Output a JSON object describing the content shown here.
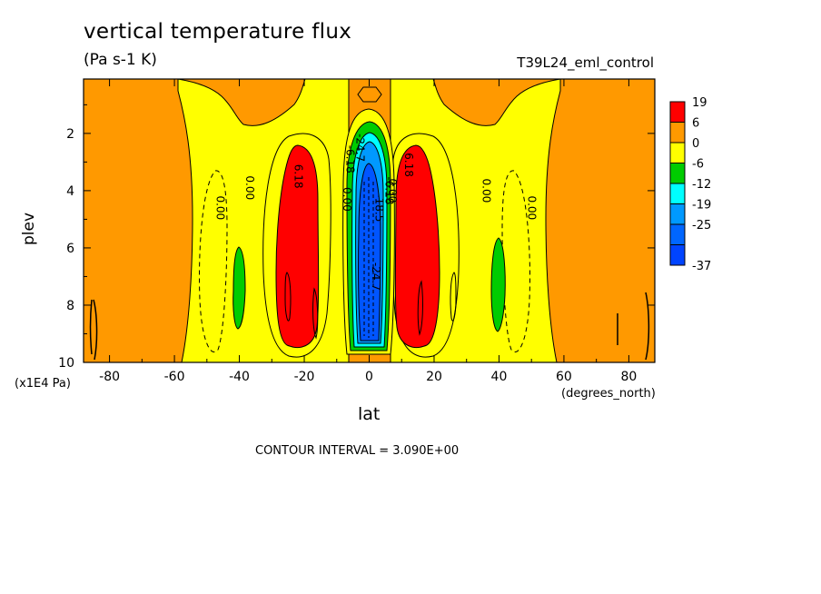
{
  "chart_data": {
    "type": "contour",
    "title": "vertical temperature flux",
    "units": "(Pa s-1 K)",
    "dataset": "T39L24_eml_control",
    "xlabel": "lat",
    "ylabel": "plev",
    "xunits": "(degrees_north)",
    "yunits": "(x1E4 Pa)",
    "xlim": [
      -88,
      88
    ],
    "ylim": [
      10,
      0.1
    ],
    "x_ticks": [
      -80,
      -60,
      -40,
      -20,
      0,
      20,
      40,
      60,
      80
    ],
    "y_ticks": [
      2,
      4,
      6,
      8,
      10
    ],
    "contour_interval_text": "CONTOUR INTERVAL = 3.090E+00",
    "colorbar": {
      "labels": [
        "19",
        "6",
        "0",
        "-6",
        "-12",
        "-19",
        "-25",
        "-37"
      ],
      "colors": [
        "#ff0000",
        "#ff9900",
        "#ffff00",
        "#00cc00",
        "#00ffff",
        "#0099ff",
        "#0066ff",
        "#0044ff"
      ]
    },
    "contour_labels": [
      {
        "text": "0.00",
        "lat": -46,
        "plev": 4.6
      },
      {
        "text": "0.00",
        "lat": -37,
        "plev": 3.9
      },
      {
        "text": "6.18",
        "lat": -22,
        "plev": 3.5
      },
      {
        "text": "0.00",
        "lat": -7,
        "plev": 4.3
      },
      {
        "text": "-6.18",
        "lat": -6,
        "plev": 2.9
      },
      {
        "text": "-24.7",
        "lat": -3,
        "plev": 2.5
      },
      {
        "text": "-18.5",
        "lat": 3,
        "plev": 4.6
      },
      {
        "text": "-24.7",
        "lat": 2,
        "plev": 7.0
      },
      {
        "text": "-6.18",
        "lat": 6,
        "plev": 4.0
      },
      {
        "text": "0.00",
        "lat": 7,
        "plev": 4.0
      },
      {
        "text": "6.18",
        "lat": 12,
        "plev": 3.1
      },
      {
        "text": "0.00",
        "lat": 36,
        "plev": 4.0
      },
      {
        "text": "0.00",
        "lat": 50,
        "plev": 4.6
      }
    ],
    "regions": [
      {
        "value": 19,
        "description": "positive max",
        "color": "#ff0000",
        "lat_range": [
          -29,
          -9
        ],
        "plev_range": [
          2.6,
          9.6
        ]
      },
      {
        "value": 19,
        "description": "positive max",
        "color": "#ff0000",
        "lat_range": [
          10,
          29
        ],
        "plev_range": [
          2.6,
          9.6
        ]
      },
      {
        "value": -37,
        "description": "negative min",
        "color": "#0044ff",
        "lat_range": [
          -3,
          5
        ],
        "plev_range": [
          3,
          9.7
        ]
      }
    ]
  }
}
